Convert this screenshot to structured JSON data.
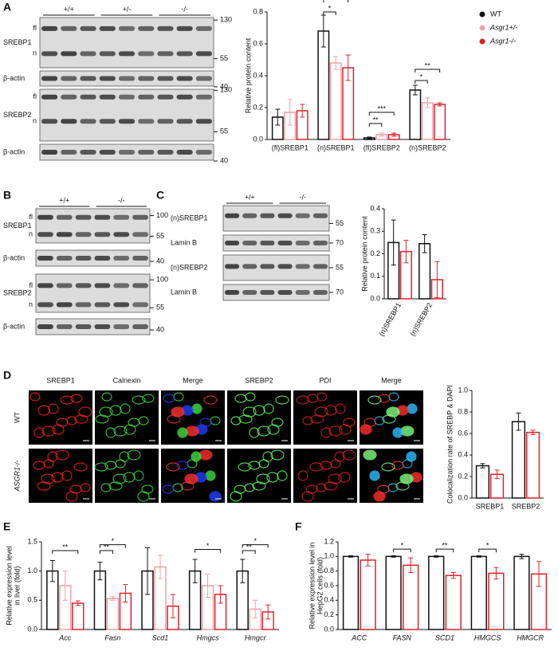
{
  "figure": {
    "letters": [
      "A",
      "B",
      "C",
      "D",
      "E",
      "F"
    ],
    "blot_a": {
      "groups": [
        "+/+",
        "+/-",
        "-/-"
      ],
      "rows": [
        {
          "label": "SREBP1",
          "bands": [
            "fl",
            "n"
          ],
          "mw": [
            "130",
            "55"
          ]
        },
        {
          "label": "β-actin",
          "mw": [
            "40"
          ]
        },
        {
          "label": "SREBP2",
          "bands": [
            "fl",
            "n"
          ],
          "mw": [
            "130",
            "55"
          ]
        },
        {
          "label": "β-actin",
          "mw": [
            "40"
          ]
        }
      ]
    },
    "blot_b": {
      "groups": [
        "+/+",
        "-/-"
      ],
      "rows": [
        {
          "label": "SREBP1",
          "bands": [
            "fl",
            "n"
          ],
          "mw": [
            "100",
            "55"
          ]
        },
        {
          "label": "β-actin",
          "mw": [
            "40"
          ]
        },
        {
          "label": "SREBP2",
          "bands": [
            "fl",
            "n"
          ],
          "mw": [
            "100",
            "55"
          ]
        },
        {
          "label": "β-actin",
          "mw": [
            "40"
          ]
        }
      ]
    },
    "blot_c": {
      "groups": [
        "+/+",
        "-/-"
      ],
      "rows": [
        {
          "label": "(n)SREBP1",
          "mw": [
            "55"
          ]
        },
        {
          "label": "Lamin B",
          "mw": [
            "70"
          ]
        },
        {
          "label": "(n)SREBP2",
          "mw": [
            "55"
          ]
        },
        {
          "label": "Lamin B",
          "mw": [
            "70"
          ]
        }
      ]
    },
    "micrographs": {
      "columns": [
        "SREBP1",
        "Calnexin",
        "Merge",
        "SREBP2",
        "PDI",
        "Merge"
      ],
      "rows": [
        "WT",
        "ASGR1-/-"
      ]
    }
  },
  "chart_data": [
    {
      "type": "bar",
      "ylabel": "Relative protein content",
      "categories": [
        "(fl)SREBP1",
        "(n)SREBP1",
        "(fl)SREBP2",
        "(n)SREBP2"
      ],
      "series": [
        {
          "name": "WT",
          "color": "#111111",
          "values": [
            0.14,
            0.68,
            0.01,
            0.31
          ],
          "errors": [
            0.05,
            0.1,
            0.005,
            0.03
          ]
        },
        {
          "name": "Asgr1+/-",
          "color": "#f0a0a8",
          "values": [
            0.17,
            0.48,
            0.03,
            0.23
          ],
          "errors": [
            0.08,
            0.04,
            0.01,
            0.03
          ]
        },
        {
          "name": "Asgr1-/-",
          "color": "#e0202a",
          "values": [
            0.18,
            0.45,
            0.03,
            0.22
          ],
          "errors": [
            0.04,
            0.08,
            0.01,
            0.01
          ]
        }
      ],
      "ylim": [
        0,
        0.8
      ],
      "yticks": [
        {
          "value": 0,
          "label": "0.0"
        },
        0.2,
        0.4,
        0.6,
        0.8
      ],
      "annotations": [
        "*",
        "*",
        "**",
        "***",
        "*",
        "**"
      ]
    },
    {
      "type": "bar",
      "ylabel": "Relative protein content",
      "categories": [
        "(n)SREBP1",
        "(n)SREBP2"
      ],
      "series": [
        {
          "color": "#111111",
          "values": [
            0.25,
            0.245
          ],
          "errors": [
            0.1,
            0.04
          ]
        },
        {
          "color": "#e0202a",
          "values": [
            0.21,
            0.085
          ],
          "errors": [
            0.05,
            0.08
          ]
        }
      ],
      "ylim": [
        0,
        0.4
      ],
      "yticks": [
        {
          "value": 0,
          "label": "0.0"
        },
        0.1,
        0.2,
        0.3,
        0.4
      ]
    },
    {
      "type": "bar",
      "ylabel": "Colocalization rate of SREBP & DAPI",
      "categories": [
        "SREBP1",
        "SREBP2"
      ],
      "series": [
        {
          "color": "#111111",
          "values": [
            0.3,
            0.71
          ],
          "errors": [
            0.02,
            0.08
          ]
        },
        {
          "color": "#e0202a",
          "values": [
            0.22,
            0.61
          ],
          "errors": [
            0.04,
            0.02
          ]
        }
      ],
      "ylim": [
        0,
        1
      ],
      "yticks": [
        {
          "value": 0,
          "label": "0.0"
        },
        0.2,
        0.4,
        0.6,
        0.8,
        {
          "value": 1,
          "label": "1.0"
        }
      ]
    },
    {
      "type": "bar",
      "ylabel": [
        "Relative expression level",
        "in liver (fold)"
      ],
      "categories": [
        "Acc",
        "Fasn",
        "Scd1",
        "Hmgcs",
        "Hmgcr"
      ],
      "series": [
        {
          "color": "#111111",
          "values": [
            1,
            1,
            1,
            1,
            1
          ],
          "errors": [
            0.18,
            0.15,
            0.4,
            0.2,
            0.2
          ]
        },
        {
          "color": "#f0a0a8",
          "values": [
            0.75,
            0.53,
            1.07,
            0.75,
            0.35
          ],
          "errors": [
            0.25,
            0.03,
            0.2,
            0.2,
            0.15
          ]
        },
        {
          "color": "#e0202a",
          "values": [
            0.45,
            0.62,
            0.4,
            0.6,
            0.3
          ],
          "errors": [
            0.04,
            0.15,
            0.2,
            0.15,
            0.12
          ]
        }
      ],
      "ylim": [
        0,
        1.5
      ],
      "yticks": [
        {
          "value": 0,
          "label": "0.0"
        },
        0.5,
        {
          "value": 1,
          "label": "1.0"
        },
        1.5
      ],
      "annotations": [
        "**",
        "**",
        "*",
        "*",
        "**",
        "*"
      ]
    },
    {
      "type": "bar",
      "ylabel": [
        "Relative expression level in",
        "HepG2 cells (fold)"
      ],
      "categories": [
        "ACC",
        "FASN",
        "SCD1",
        "HMGCS",
        "HMGCR"
      ],
      "series": [
        {
          "color": "#111111",
          "values": [
            1,
            1,
            1,
            1,
            1
          ],
          "errors": [
            0.01,
            0.01,
            0.01,
            0.01,
            0.03
          ]
        },
        {
          "color": "#e0202a",
          "values": [
            0.95,
            0.88,
            0.74,
            0.77,
            0.76
          ],
          "errors": [
            0.08,
            0.1,
            0.04,
            0.08,
            0.17
          ]
        }
      ],
      "ylim": [
        0,
        1.2
      ],
      "yticks": [
        {
          "value": 0,
          "label": "0.0"
        },
        0.2,
        0.4,
        0.6,
        0.8,
        {
          "value": 1,
          "label": "1.0"
        },
        1.2
      ],
      "annotations": [
        "*",
        "**",
        "*"
      ]
    }
  ]
}
